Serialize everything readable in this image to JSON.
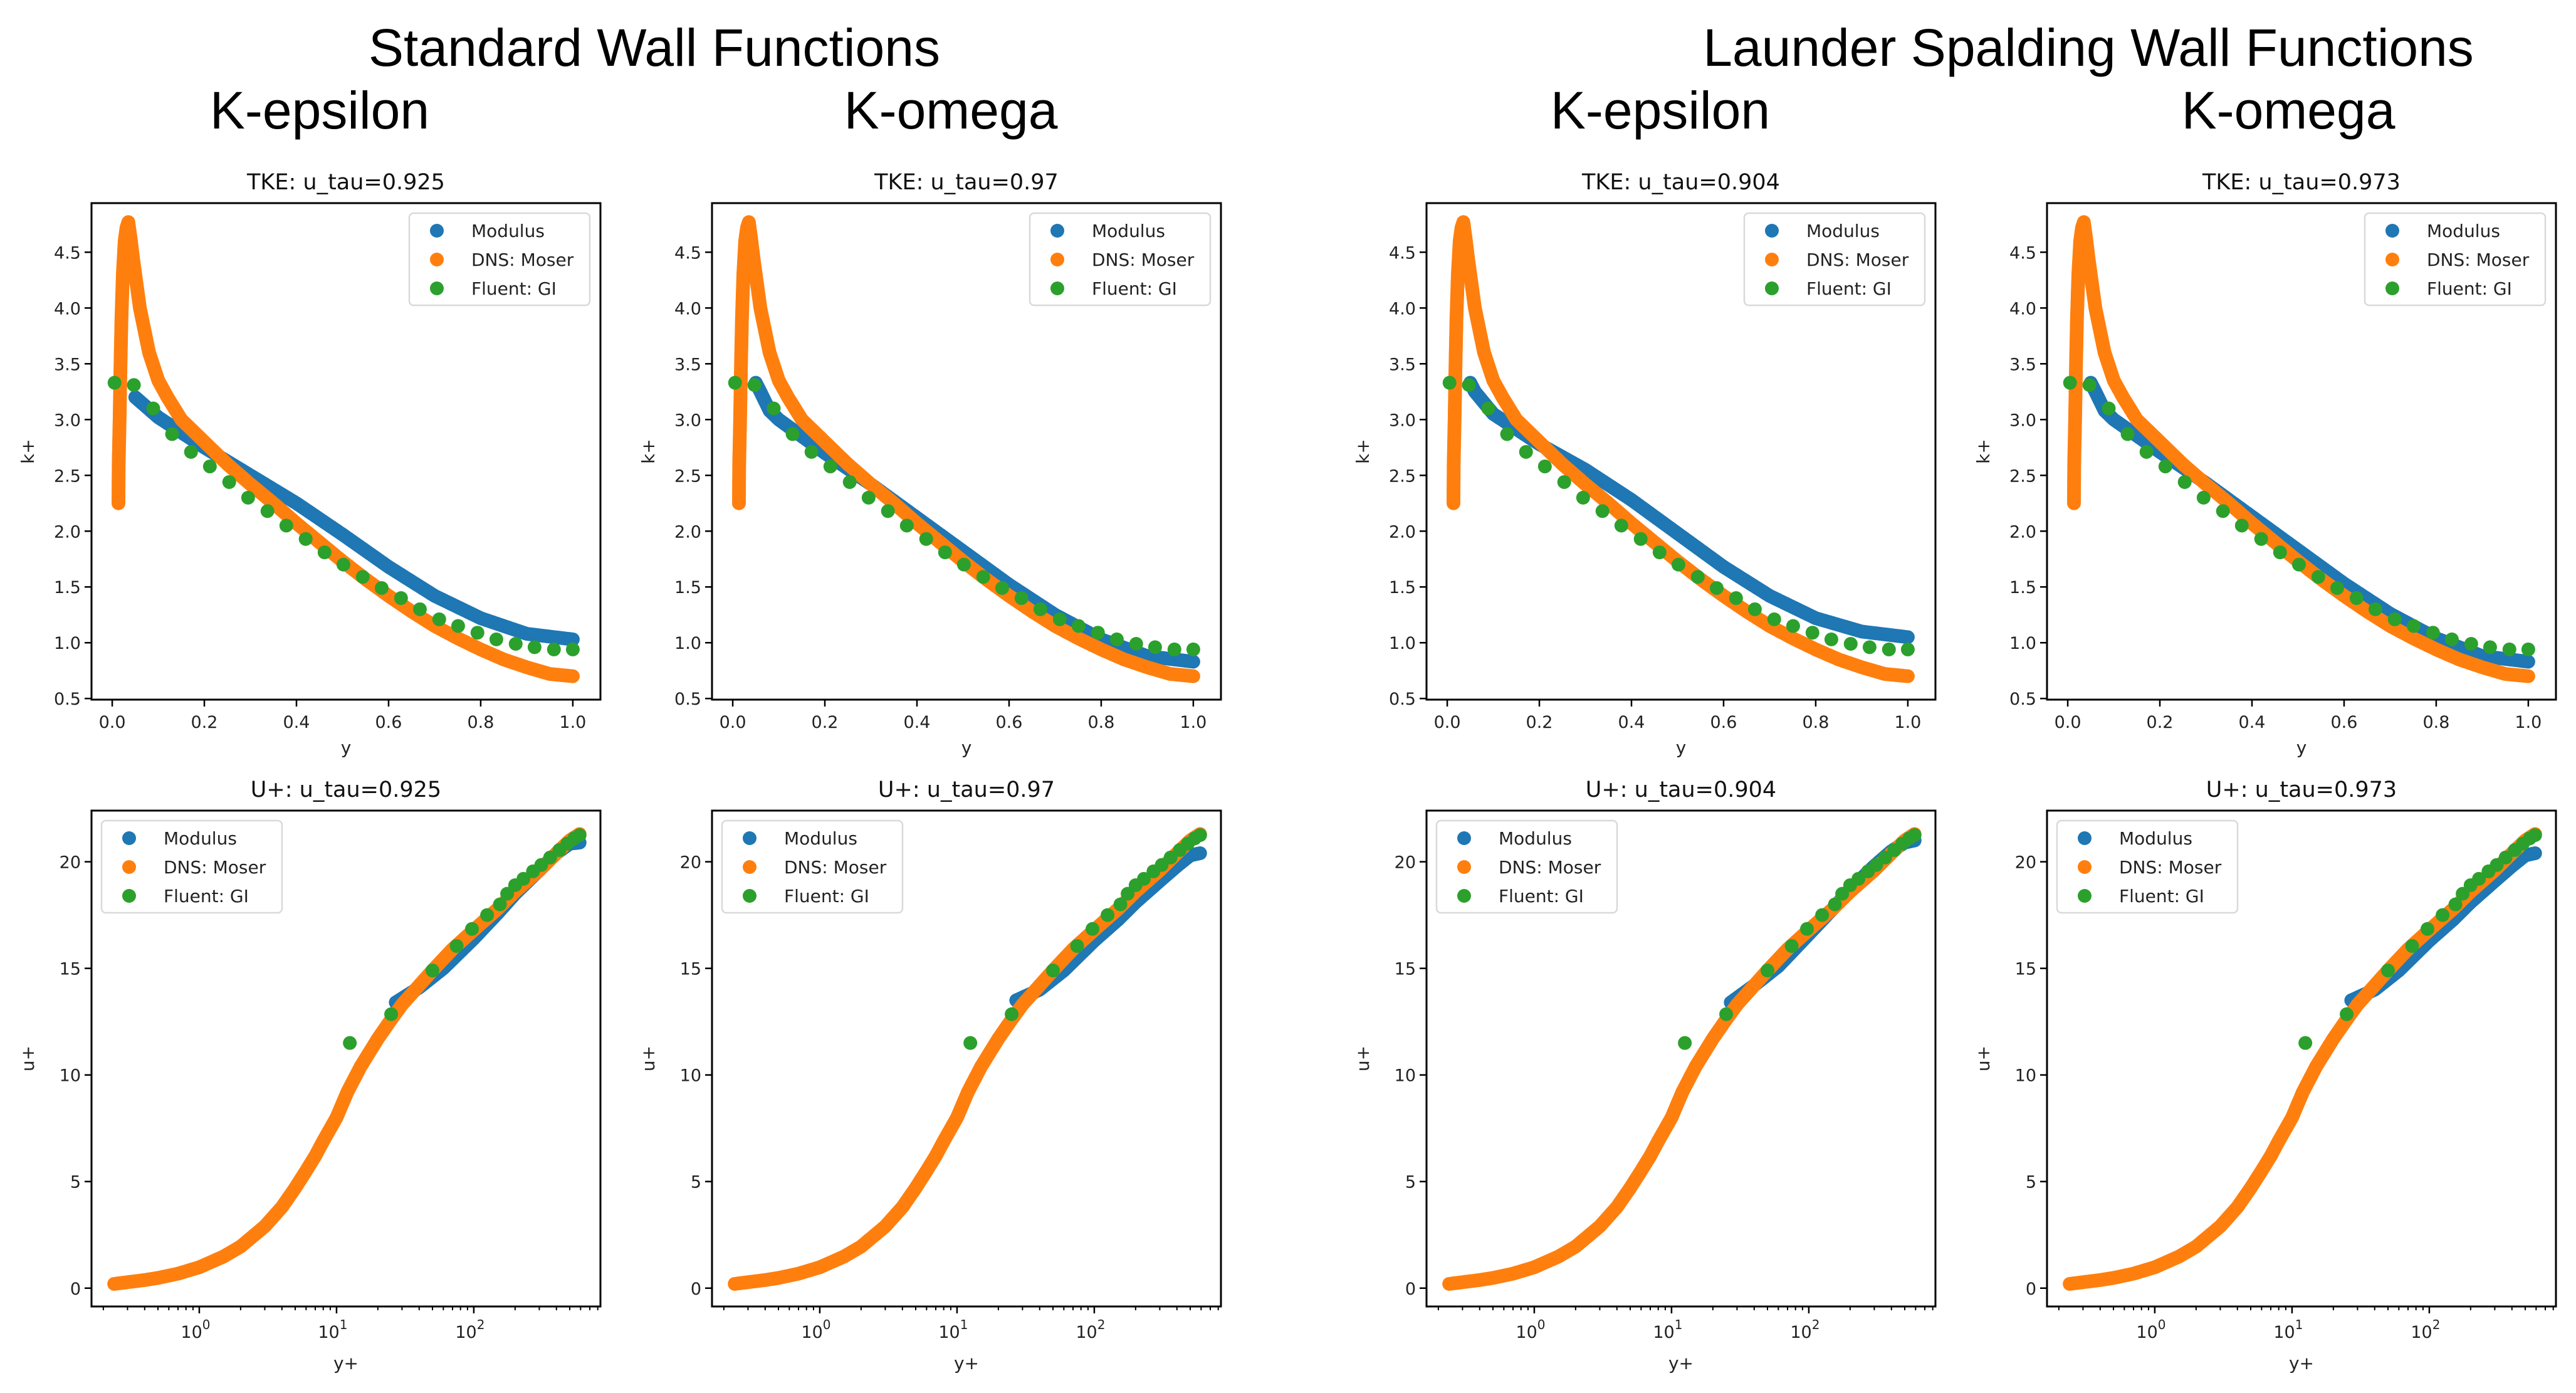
{
  "headings": {
    "standard": "Standard Wall Functions",
    "launder": "Launder Spalding Wall Functions",
    "col_models": [
      "K-epsilon",
      "K-omega",
      "K-epsilon",
      "K-omega"
    ]
  },
  "colors": {
    "modulus": "#1f77b4",
    "dns": "#ff7f0e",
    "fluent": "#2ca02c"
  },
  "legend": [
    "Modulus",
    "DNS: Moser",
    "Fluent: GI"
  ],
  "chart_data": [
    {
      "type": "scatter",
      "group": "Standard Wall Functions",
      "model": "K-epsilon",
      "title": "TKE: u_tau=0.925",
      "xlabel": "y",
      "ylabel": "k+",
      "xlim": [
        -0.045,
        1.06
      ],
      "ylim": [
        0.49,
        4.94
      ],
      "xscale": "linear",
      "xticks": [
        "0.0",
        "0.2",
        "0.4",
        "0.6",
        "0.8",
        "1.0"
      ],
      "yticks": [
        "0.5",
        "1.0",
        "1.5",
        "2.0",
        "2.5",
        "3.0",
        "3.5",
        "4.0",
        "4.5"
      ],
      "legend_loc": "upper right",
      "series": [
        {
          "name": "Modulus",
          "points": [
            [
              0.05,
              3.2
            ],
            [
              0.1,
              3.02
            ],
            [
              0.2,
              2.75
            ],
            [
              0.3,
              2.5
            ],
            [
              0.4,
              2.25
            ],
            [
              0.5,
              1.97
            ],
            [
              0.6,
              1.68
            ],
            [
              0.7,
              1.42
            ],
            [
              0.8,
              1.22
            ],
            [
              0.9,
              1.08
            ],
            [
              1.0,
              1.03
            ]
          ]
        },
        {
          "name": "DNS: Moser",
          "points": "dns_tke"
        },
        {
          "name": "Fluent: GI",
          "points": "fluent_tke"
        }
      ]
    },
    {
      "type": "scatter",
      "group": "Standard Wall Functions",
      "model": "K-omega",
      "title": "TKE: u_tau=0.97",
      "xlabel": "y",
      "ylabel": "k+",
      "xlim": [
        -0.045,
        1.06
      ],
      "ylim": [
        0.49,
        4.94
      ],
      "xscale": "linear",
      "xticks": [
        "0.0",
        "0.2",
        "0.4",
        "0.6",
        "0.8",
        "1.0"
      ],
      "yticks": [
        "0.5",
        "1.0",
        "1.5",
        "2.0",
        "2.5",
        "3.0",
        "3.5",
        "4.0",
        "4.5"
      ],
      "legend_loc": "upper right",
      "series": [
        {
          "name": "Modulus",
          "points": [
            [
              0.05,
              3.33
            ],
            [
              0.06,
              3.25
            ],
            [
              0.08,
              3.08
            ],
            [
              0.1,
              3.0
            ],
            [
              0.2,
              2.7
            ],
            [
              0.3,
              2.42
            ],
            [
              0.4,
              2.12
            ],
            [
              0.5,
              1.82
            ],
            [
              0.6,
              1.52
            ],
            [
              0.7,
              1.25
            ],
            [
              0.8,
              1.03
            ],
            [
              0.9,
              0.88
            ],
            [
              1.0,
              0.83
            ]
          ]
        },
        {
          "name": "DNS: Moser",
          "points": "dns_tke"
        },
        {
          "name": "Fluent: GI",
          "points": "fluent_tke"
        }
      ]
    },
    {
      "type": "scatter",
      "group": "Launder Spalding Wall Functions",
      "model": "K-epsilon",
      "title": "TKE: u_tau=0.904",
      "xlabel": "y",
      "ylabel": "k+",
      "xlim": [
        -0.045,
        1.06
      ],
      "ylim": [
        0.49,
        4.94
      ],
      "xscale": "linear",
      "xticks": [
        "0.0",
        "0.2",
        "0.4",
        "0.6",
        "0.8",
        "1.0"
      ],
      "yticks": [
        "0.5",
        "1.0",
        "1.5",
        "2.0",
        "2.5",
        "3.0",
        "3.5",
        "4.0",
        "4.5"
      ],
      "legend_loc": "upper right",
      "series": [
        {
          "name": "Modulus",
          "points": [
            [
              0.05,
              3.33
            ],
            [
              0.06,
              3.25
            ],
            [
              0.1,
              3.05
            ],
            [
              0.2,
              2.78
            ],
            [
              0.3,
              2.55
            ],
            [
              0.4,
              2.28
            ],
            [
              0.5,
              1.98
            ],
            [
              0.6,
              1.68
            ],
            [
              0.7,
              1.42
            ],
            [
              0.8,
              1.22
            ],
            [
              0.9,
              1.1
            ],
            [
              1.0,
              1.05
            ]
          ]
        },
        {
          "name": "DNS: Moser",
          "points": "dns_tke"
        },
        {
          "name": "Fluent: GI",
          "points": "fluent_tke"
        }
      ]
    },
    {
      "type": "scatter",
      "group": "Launder Spalding Wall Functions",
      "model": "K-omega",
      "title": "TKE: u_tau=0.973",
      "xlabel": "y",
      "ylabel": "k+",
      "xlim": [
        -0.045,
        1.06
      ],
      "ylim": [
        0.49,
        4.94
      ],
      "xscale": "linear",
      "xticks": [
        "0.0",
        "0.2",
        "0.4",
        "0.6",
        "0.8",
        "1.0"
      ],
      "yticks": [
        "0.5",
        "1.0",
        "1.5",
        "2.0",
        "2.5",
        "3.0",
        "3.5",
        "4.0",
        "4.5"
      ],
      "legend_loc": "upper right",
      "series": [
        {
          "name": "Modulus",
          "points": [
            [
              0.05,
              3.33
            ],
            [
              0.06,
              3.25
            ],
            [
              0.08,
              3.08
            ],
            [
              0.1,
              3.0
            ],
            [
              0.2,
              2.71
            ],
            [
              0.3,
              2.43
            ],
            [
              0.4,
              2.13
            ],
            [
              0.5,
              1.83
            ],
            [
              0.6,
              1.53
            ],
            [
              0.7,
              1.26
            ],
            [
              0.8,
              1.04
            ],
            [
              0.9,
              0.88
            ],
            [
              1.0,
              0.83
            ]
          ]
        },
        {
          "name": "DNS: Moser",
          "points": "dns_tke"
        },
        {
          "name": "Fluent: GI",
          "points": "fluent_tke"
        }
      ]
    },
    {
      "type": "scatter",
      "group": "Standard Wall Functions",
      "model": "K-epsilon",
      "title": "U+: u_tau=0.925",
      "xlabel": "y+",
      "ylabel": "u+",
      "xlim": [
        0.164,
        837
      ],
      "ylim": [
        -0.86,
        22.4
      ],
      "xscale": "log",
      "xticks": [
        "10",
        "10",
        "10"
      ],
      "xtick_exponents": [
        "0",
        "1",
        "2"
      ],
      "yticks": [
        "0",
        "5",
        "10",
        "15",
        "20"
      ],
      "legend_loc": "upper left",
      "series": [
        {
          "name": "Modulus",
          "points": [
            [
              27,
              13.4
            ],
            [
              40,
              14.1
            ],
            [
              60,
              15.0
            ],
            [
              100,
              16.4
            ],
            [
              150,
              17.6
            ],
            [
              200,
              18.5
            ],
            [
              300,
              19.6
            ],
            [
              400,
              20.4
            ],
            [
              500,
              20.85
            ],
            [
              590,
              20.9
            ]
          ]
        },
        {
          "name": "DNS: Moser",
          "points": "dns_u"
        },
        {
          "name": "Fluent: GI",
          "points": "fluent_u"
        }
      ]
    },
    {
      "type": "scatter",
      "group": "Standard Wall Functions",
      "model": "K-omega",
      "title": "U+: u_tau=0.97",
      "xlabel": "y+",
      "ylabel": "u+",
      "xlim": [
        0.164,
        837
      ],
      "ylim": [
        -0.86,
        22.4
      ],
      "xscale": "log",
      "xticks": [
        "10",
        "10",
        "10"
      ],
      "xtick_exponents": [
        "0",
        "1",
        "2"
      ],
      "yticks": [
        "0",
        "5",
        "10",
        "15",
        "20"
      ],
      "legend_loc": "upper left",
      "series": [
        {
          "name": "Modulus",
          "points": [
            [
              27,
              13.5
            ],
            [
              40,
              14.0
            ],
            [
              60,
              14.9
            ],
            [
              100,
              16.3
            ],
            [
              150,
              17.3
            ],
            [
              200,
              18.1
            ],
            [
              300,
              19.1
            ],
            [
              400,
              19.8
            ],
            [
              500,
              20.3
            ],
            [
              590,
              20.4
            ]
          ]
        },
        {
          "name": "DNS: Moser",
          "points": "dns_u"
        },
        {
          "name": "Fluent: GI",
          "points": "fluent_u"
        }
      ]
    },
    {
      "type": "scatter",
      "group": "Launder Spalding Wall Functions",
      "model": "K-epsilon",
      "title": "U+: u_tau=0.904",
      "xlabel": "y+",
      "ylabel": "u+",
      "xlim": [
        0.164,
        837
      ],
      "ylim": [
        -0.86,
        22.4
      ],
      "xscale": "log",
      "xticks": [
        "10",
        "10",
        "10"
      ],
      "xtick_exponents": [
        "0",
        "1",
        "2"
      ],
      "yticks": [
        "0",
        "5",
        "10",
        "15",
        "20"
      ],
      "legend_loc": "upper left",
      "series": [
        {
          "name": "Modulus",
          "points": [
            [
              27,
              13.4
            ],
            [
              40,
              14.2
            ],
            [
              60,
              15.1
            ],
            [
              100,
              16.6
            ],
            [
              150,
              17.8
            ],
            [
              200,
              18.7
            ],
            [
              300,
              19.8
            ],
            [
              400,
              20.5
            ],
            [
              500,
              20.9
            ],
            [
              590,
              21.0
            ]
          ]
        },
        {
          "name": "DNS: Moser",
          "points": "dns_u"
        },
        {
          "name": "Fluent: GI",
          "points": "fluent_u"
        }
      ]
    },
    {
      "type": "scatter",
      "group": "Launder Spalding Wall Functions",
      "model": "K-omega",
      "title": "U+: u_tau=0.973",
      "xlabel": "y+",
      "ylabel": "u+",
      "xlim": [
        0.164,
        837
      ],
      "ylim": [
        -0.86,
        22.4
      ],
      "xscale": "log",
      "xticks": [
        "10",
        "10",
        "10"
      ],
      "xtick_exponents": [
        "0",
        "1",
        "2"
      ],
      "yticks": [
        "0",
        "5",
        "10",
        "15",
        "20"
      ],
      "legend_loc": "upper left",
      "series": [
        {
          "name": "Modulus",
          "points": [
            [
              27,
              13.5
            ],
            [
              40,
              14.0
            ],
            [
              60,
              14.9
            ],
            [
              100,
              16.3
            ],
            [
              150,
              17.3
            ],
            [
              200,
              18.1
            ],
            [
              300,
              19.1
            ],
            [
              400,
              19.8
            ],
            [
              500,
              20.3
            ],
            [
              590,
              20.4
            ]
          ]
        },
        {
          "name": "DNS: Moser",
          "points": "dns_u"
        },
        {
          "name": "Fluent: GI",
          "points": "fluent_u"
        }
      ]
    }
  ],
  "shared_series": {
    "dns_tke": [
      [
        0.0135,
        2.25
      ],
      [
        0.014,
        2.6
      ],
      [
        0.016,
        3.0
      ],
      [
        0.018,
        3.5
      ],
      [
        0.02,
        3.9
      ],
      [
        0.023,
        4.3
      ],
      [
        0.027,
        4.6
      ],
      [
        0.031,
        4.72
      ],
      [
        0.035,
        4.77
      ],
      [
        0.04,
        4.62
      ],
      [
        0.045,
        4.45
      ],
      [
        0.05,
        4.3
      ],
      [
        0.06,
        4.0
      ],
      [
        0.07,
        3.8
      ],
      [
        0.08,
        3.6
      ],
      [
        0.1,
        3.35
      ],
      [
        0.12,
        3.2
      ],
      [
        0.15,
        3.0
      ],
      [
        0.2,
        2.8
      ],
      [
        0.25,
        2.6
      ],
      [
        0.3,
        2.42
      ],
      [
        0.35,
        2.25
      ],
      [
        0.4,
        2.07
      ],
      [
        0.45,
        1.9
      ],
      [
        0.5,
        1.73
      ],
      [
        0.55,
        1.57
      ],
      [
        0.6,
        1.42
      ],
      [
        0.65,
        1.28
      ],
      [
        0.7,
        1.15
      ],
      [
        0.75,
        1.04
      ],
      [
        0.8,
        0.94
      ],
      [
        0.85,
        0.85
      ],
      [
        0.9,
        0.78
      ],
      [
        0.95,
        0.72
      ],
      [
        1.0,
        0.7
      ]
    ],
    "fluent_tke": [
      [
        0.005,
        3.33
      ],
      [
        0.047,
        3.31
      ],
      [
        0.089,
        3.1
      ],
      [
        0.13,
        2.87
      ],
      [
        0.171,
        2.71
      ],
      [
        0.212,
        2.58
      ],
      [
        0.254,
        2.44
      ],
      [
        0.295,
        2.3
      ],
      [
        0.337,
        2.18
      ],
      [
        0.378,
        2.05
      ],
      [
        0.42,
        1.93
      ],
      [
        0.461,
        1.81
      ],
      [
        0.502,
        1.7
      ],
      [
        0.544,
        1.59
      ],
      [
        0.585,
        1.49
      ],
      [
        0.627,
        1.4
      ],
      [
        0.668,
        1.3
      ],
      [
        0.71,
        1.21
      ],
      [
        0.751,
        1.15
      ],
      [
        0.793,
        1.09
      ],
      [
        0.834,
        1.03
      ],
      [
        0.876,
        0.99
      ],
      [
        0.917,
        0.96
      ],
      [
        0.959,
        0.94
      ],
      [
        1.0,
        0.94
      ]
    ],
    "dns_u": [
      [
        0.24,
        0.2
      ],
      [
        0.3,
        0.28
      ],
      [
        0.4,
        0.38
      ],
      [
        0.5,
        0.48
      ],
      [
        0.7,
        0.68
      ],
      [
        1,
        0.98
      ],
      [
        1.5,
        1.48
      ],
      [
        2,
        1.95
      ],
      [
        3,
        2.9
      ],
      [
        4,
        3.8
      ],
      [
        5,
        4.7
      ],
      [
        6,
        5.5
      ],
      [
        7,
        6.2
      ],
      [
        8,
        6.9
      ],
      [
        10,
        8.0
      ],
      [
        12,
        9.2
      ],
      [
        15,
        10.4
      ],
      [
        20,
        11.7
      ],
      [
        25,
        12.6
      ],
      [
        30,
        13.3
      ],
      [
        40,
        14.2
      ],
      [
        50,
        14.9
      ],
      [
        70,
        15.9
      ],
      [
        100,
        16.8
      ],
      [
        150,
        17.8
      ],
      [
        200,
        18.6
      ],
      [
        300,
        19.6
      ],
      [
        400,
        20.4
      ],
      [
        500,
        21.0
      ],
      [
        590,
        21.3
      ]
    ],
    "fluent_u": [
      [
        12.5,
        11.5
      ],
      [
        25,
        12.85
      ],
      [
        50,
        14.9
      ],
      [
        75,
        16.05
      ],
      [
        97,
        16.85
      ],
      [
        125,
        17.5
      ],
      [
        155,
        18.0
      ],
      [
        175,
        18.5
      ],
      [
        200,
        18.9
      ],
      [
        230,
        19.2
      ],
      [
        270,
        19.55
      ],
      [
        310,
        19.85
      ],
      [
        360,
        20.2
      ],
      [
        420,
        20.55
      ],
      [
        480,
        20.85
      ],
      [
        540,
        21.1
      ],
      [
        590,
        21.25
      ]
    ]
  }
}
